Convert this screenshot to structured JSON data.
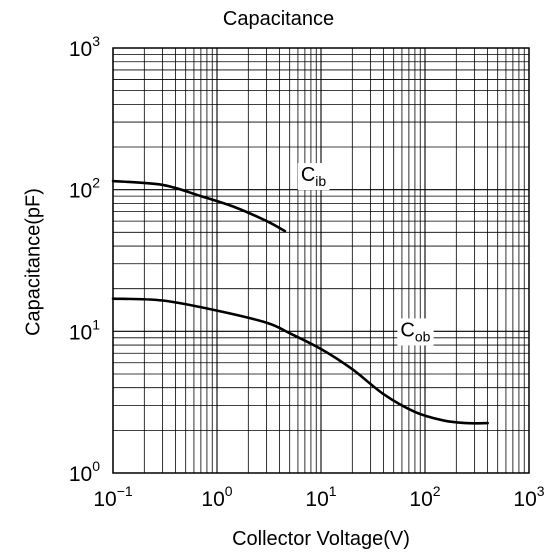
{
  "chart_data": {
    "type": "line",
    "title": "Capacitance",
    "xlabel": "Collector Voltage(V)",
    "ylabel": "Capacitance(pF)",
    "x_scale": "log",
    "y_scale": "log",
    "xlim": [
      0.1,
      1000
    ],
    "ylim": [
      1,
      1000
    ],
    "grid": true,
    "x_ticks": [
      {
        "base": "10",
        "exp": "−1",
        "value": 0.1
      },
      {
        "base": "10",
        "exp": "0",
        "value": 1
      },
      {
        "base": "10",
        "exp": "1",
        "value": 10
      },
      {
        "base": "10",
        "exp": "2",
        "value": 100
      },
      {
        "base": "10",
        "exp": "3",
        "value": 1000
      }
    ],
    "y_ticks": [
      {
        "base": "10",
        "exp": "0",
        "value": 1
      },
      {
        "base": "10",
        "exp": "1",
        "value": 10
      },
      {
        "base": "10",
        "exp": "2",
        "value": 100
      },
      {
        "base": "10",
        "exp": "3",
        "value": 1000
      }
    ],
    "series": [
      {
        "label_main": "C",
        "label_sub": "ib",
        "label_at": [
          6.4,
          115
        ],
        "points": [
          [
            0.1,
            115
          ],
          [
            0.3,
            108
          ],
          [
            0.7,
            90
          ],
          [
            1.5,
            75
          ],
          [
            3,
            60
          ],
          [
            4.5,
            51
          ]
        ]
      },
      {
        "label_main": "C",
        "label_sub": "ob",
        "label_at": [
          58,
          9.2
        ],
        "points": [
          [
            0.1,
            17
          ],
          [
            0.3,
            16.5
          ],
          [
            1,
            14
          ],
          [
            3,
            11.5
          ],
          [
            5,
            9.7
          ],
          [
            10,
            7.5
          ],
          [
            20,
            5.4
          ],
          [
            40,
            3.6
          ],
          [
            80,
            2.7
          ],
          [
            150,
            2.35
          ],
          [
            250,
            2.25
          ],
          [
            400,
            2.25
          ]
        ]
      }
    ]
  }
}
